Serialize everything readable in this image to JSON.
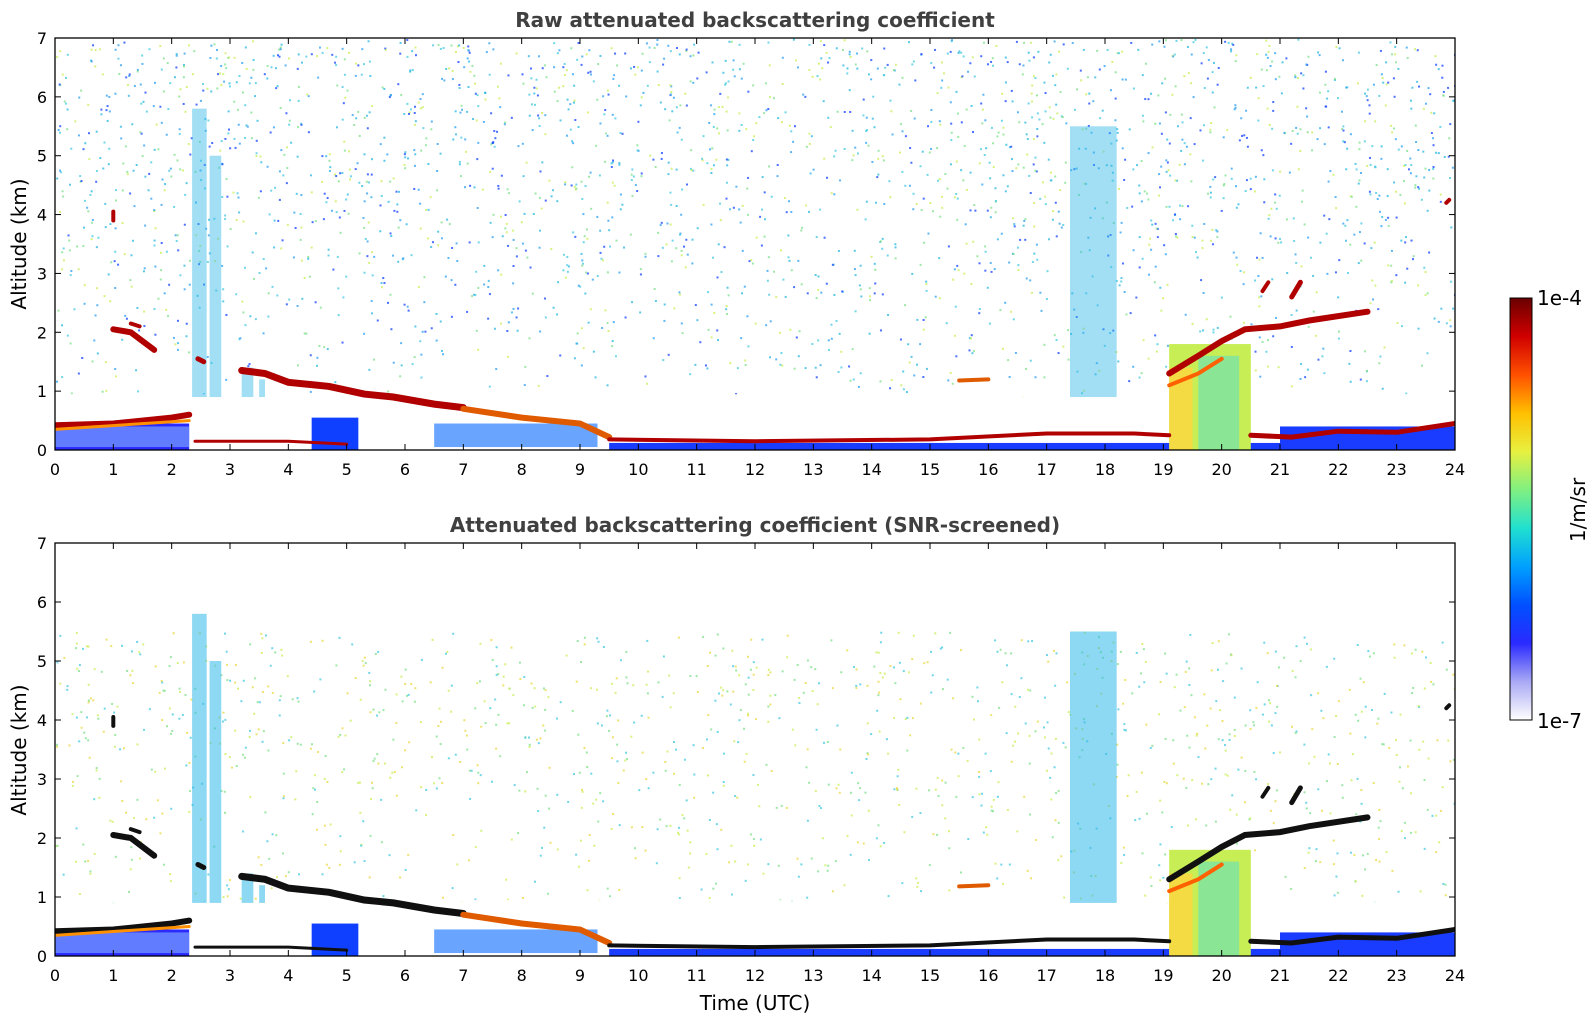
{
  "figure": {
    "colorbar": {
      "label": "1/m/sr",
      "top_label": "1e-4",
      "bottom_label": "1e-7",
      "scale": "log",
      "range": [
        1e-07,
        0.0001
      ],
      "colormap": [
        "#ffffff",
        "#a9a9f5",
        "#2a2aff",
        "#0050ff",
        "#00a0ff",
        "#20e0d0",
        "#80f080",
        "#e8f040",
        "#ffc000",
        "#ff5000",
        "#d00000",
        "#6a0000"
      ]
    }
  },
  "chart_data": [
    {
      "type": "heatmap",
      "title": "Raw attenuated backscattering coefficient",
      "xlabel": "",
      "ylabel": "Altitude (km)",
      "xlim": [
        0,
        24
      ],
      "ylim": [
        0,
        7
      ],
      "xticks": [
        "0",
        "1",
        "2",
        "3",
        "4",
        "5",
        "6",
        "7",
        "8",
        "9",
        "10",
        "11",
        "12",
        "13",
        "14",
        "15",
        "16",
        "17",
        "18",
        "19",
        "20",
        "21",
        "22",
        "23",
        "24"
      ],
      "yticks": [
        "0",
        "1",
        "2",
        "3",
        "4",
        "5",
        "6",
        "7"
      ],
      "grid": false,
      "layers": [
        {
          "feature": "aerosol boundary layer",
          "x": [
            0,
            2.3
          ],
          "y_top": [
            0.5,
            0.6
          ]
        },
        {
          "feature": "cloud layer",
          "x": [
            1.0,
            1.7
          ],
          "y": [
            2.0,
            1.7
          ]
        },
        {
          "feature": "cloud layer",
          "x": [
            3.2,
            7.0
          ],
          "y": [
            1.3,
            0.75
          ]
        },
        {
          "feature": "descending aerosol layer",
          "x": [
            7.0,
            9.5
          ],
          "y": [
            0.7,
            0.2
          ]
        },
        {
          "feature": "surface layer",
          "x": [
            9.5,
            24
          ],
          "y": [
            0.15,
            0.35
          ]
        },
        {
          "feature": "cloud layer",
          "x": [
            19.0,
            22.5
          ],
          "y": [
            1.2,
            2.4
          ]
        },
        {
          "feature": "precipitation / fall streaks",
          "x": [
            19.1,
            20.5
          ],
          "y": [
            0,
            1.9
          ]
        }
      ]
    },
    {
      "type": "heatmap",
      "title": "Attenuated backscattering coefficient (SNR-screened)",
      "xlabel": "Time (UTC)",
      "ylabel": "Altitude (km)",
      "xlim": [
        0,
        24
      ],
      "ylim": [
        0,
        7
      ],
      "xticks": [
        "0",
        "1",
        "2",
        "3",
        "4",
        "5",
        "6",
        "7",
        "8",
        "9",
        "10",
        "11",
        "12",
        "13",
        "14",
        "15",
        "16",
        "17",
        "18",
        "19",
        "20",
        "21",
        "22",
        "23",
        "24"
      ],
      "yticks": [
        "0",
        "1",
        "2",
        "3",
        "4",
        "5",
        "6",
        "7"
      ],
      "grid": false,
      "layers": [
        {
          "feature": "aerosol boundary layer",
          "x": [
            0,
            2.3
          ],
          "y_top": [
            0.5,
            0.6
          ]
        },
        {
          "feature": "cloud layer",
          "x": [
            1.0,
            1.7
          ],
          "y": [
            2.0,
            1.7
          ]
        },
        {
          "feature": "cloud layer",
          "x": [
            3.2,
            7.0
          ],
          "y": [
            1.3,
            0.75
          ]
        },
        {
          "feature": "descending aerosol layer",
          "x": [
            7.0,
            9.5
          ],
          "y": [
            0.7,
            0.2
          ]
        },
        {
          "feature": "surface layer",
          "x": [
            9.5,
            24
          ],
          "y": [
            0.15,
            0.35
          ]
        },
        {
          "feature": "cloud layer",
          "x": [
            19.0,
            22.5
          ],
          "y": [
            1.2,
            2.4
          ]
        },
        {
          "feature": "precipitation / fall streaks",
          "x": [
            19.1,
            20.5
          ],
          "y": [
            0,
            1.9
          ]
        }
      ]
    }
  ]
}
